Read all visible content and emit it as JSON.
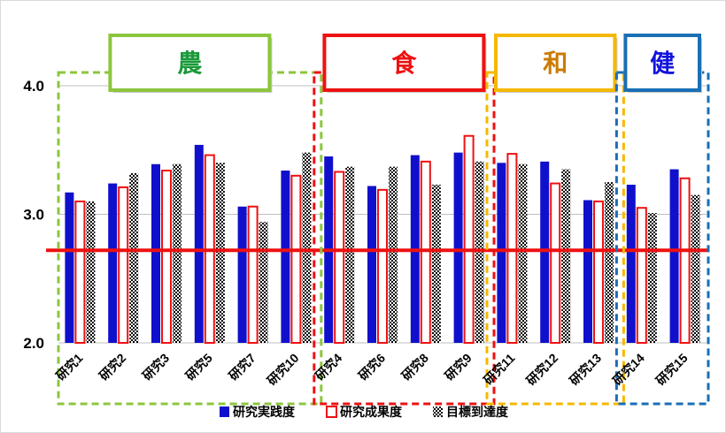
{
  "chart_data": {
    "type": "bar",
    "ylim": [
      2.0,
      4.0
    ],
    "yticks": [
      "2.0",
      "3.0",
      "4.0"
    ],
    "grid": true,
    "reference_line": 2.72,
    "categories": [
      "研究1",
      "研究2",
      "研究3",
      "研究5",
      "研究7",
      "研究10",
      "研究4",
      "研究6",
      "研究8",
      "研究9",
      "研究11",
      "研究12",
      "研究13",
      "研究14",
      "研究15"
    ],
    "series": [
      {
        "name": "研究実践度",
        "color": "#1010cc",
        "values": [
          3.17,
          3.24,
          3.39,
          3.54,
          3.06,
          3.34,
          3.45,
          3.22,
          3.46,
          3.48,
          3.4,
          3.41,
          3.11,
          3.23,
          3.35
        ]
      },
      {
        "name": "研究成果度",
        "color": "#ee1111",
        "values": [
          3.1,
          3.21,
          3.34,
          3.46,
          3.06,
          3.3,
          3.33,
          3.19,
          3.41,
          3.61,
          3.47,
          3.24,
          3.1,
          3.05,
          3.28
        ]
      },
      {
        "name": "目標到達度",
        "color": "#555555",
        "values": [
          3.1,
          3.32,
          3.39,
          3.4,
          2.94,
          3.48,
          3.37,
          3.37,
          3.23,
          3.41,
          3.39,
          3.35,
          3.25,
          3.01,
          3.15
        ]
      }
    ],
    "legend_position": "bottom",
    "groups": [
      {
        "label": "農",
        "color": "#1a9a3a",
        "border": "#8cc63e",
        "start": 0,
        "end": 5
      },
      {
        "label": "食",
        "color": "#ee1111",
        "border": "#ee1111",
        "start": 6,
        "end": 9
      },
      {
        "label": "和",
        "color": "#cc7a00",
        "border": "#f5b800",
        "start": 10,
        "end": 12
      },
      {
        "label": "健",
        "color": "#1414dd",
        "border": "#1a6fb5",
        "start": 13,
        "end": 14
      }
    ]
  }
}
